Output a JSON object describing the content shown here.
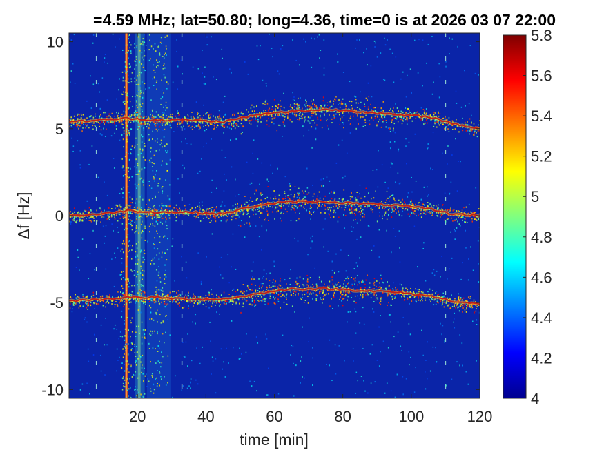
{
  "chart_data": {
    "type": "heatmap",
    "title": "=4.59 MHz;  lat=50.80; long=4.36, time=0 is at 2026 03 07 22:00",
    "xlabel": "time [min]",
    "ylabel": "Δf [Hz]",
    "xlim": [
      0,
      120
    ],
    "ylim": [
      -10.5,
      10.5
    ],
    "xticks": [
      20,
      40,
      60,
      80,
      100,
      120
    ],
    "yticks": [
      -10,
      -5,
      0,
      5,
      10
    ],
    "colorbar": {
      "min": 4,
      "max": 5.8,
      "ticks": [
        4,
        4.2,
        4.4,
        4.6,
        4.8,
        5,
        5.2,
        5.4,
        5.6,
        5.8
      ],
      "colormap": "jet"
    },
    "background_color": "#0a24a8",
    "series": [
      {
        "time": [
          0,
          10,
          17,
          25,
          35,
          45,
          55,
          65,
          75,
          85,
          95,
          105,
          112,
          120
        ],
        "freq": [
          5.4,
          5.5,
          5.6,
          5.5,
          5.5,
          5.4,
          5.8,
          6.0,
          6.1,
          6.0,
          5.8,
          5.7,
          5.3,
          5.0
        ]
      },
      {
        "time": [
          0,
          10,
          17,
          25,
          35,
          45,
          55,
          65,
          75,
          85,
          95,
          105,
          112,
          120
        ],
        "freq": [
          0.0,
          0.1,
          0.3,
          0.2,
          0.2,
          0.1,
          0.6,
          0.8,
          0.8,
          0.7,
          0.6,
          0.4,
          0.1,
          0.0
        ]
      },
      {
        "time": [
          0,
          10,
          17,
          25,
          35,
          45,
          55,
          65,
          75,
          85,
          95,
          105,
          112,
          120
        ],
        "freq": [
          -4.9,
          -4.8,
          -4.7,
          -4.7,
          -4.8,
          -4.8,
          -4.5,
          -4.2,
          -4.2,
          -4.3,
          -4.4,
          -4.6,
          -4.9,
          -5.1
        ]
      }
    ],
    "vertical_features": [
      {
        "time": 16.8,
        "kind": "strong"
      },
      {
        "time": 20.5,
        "kind": "band"
      },
      {
        "time": 26,
        "kind": "speckle"
      },
      {
        "time": 33,
        "kind": "dashed"
      },
      {
        "time": 8,
        "kind": "dashed"
      },
      {
        "time": 110,
        "kind": "dashed"
      }
    ]
  }
}
